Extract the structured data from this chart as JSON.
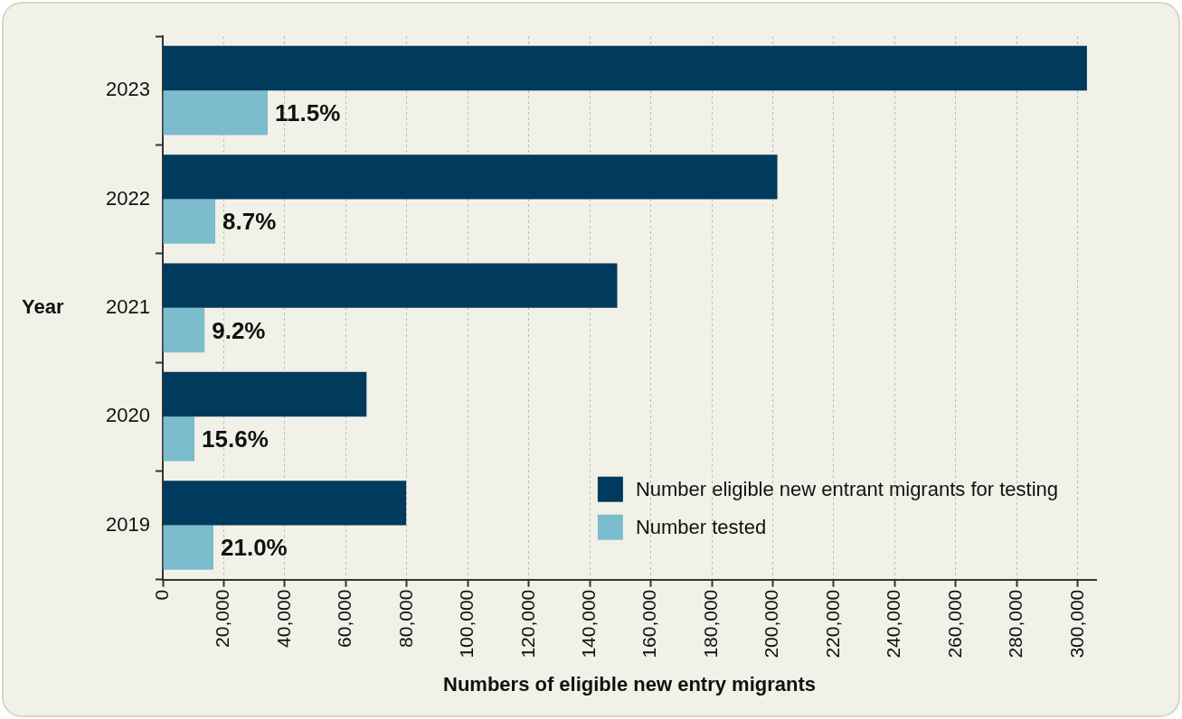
{
  "chart_data": {
    "type": "bar",
    "orientation": "horizontal",
    "xlabel": "Numbers of eligible new entry migrants",
    "ylabel": "Year",
    "categories": [
      "2023",
      "2022",
      "2021",
      "2020",
      "2019"
    ],
    "series": [
      {
        "name": "Number eligible new entrant migrants for testing",
        "color": "#003a5d",
        "values": [
          303000,
          201500,
          149000,
          66800,
          79800
        ]
      },
      {
        "name": "Number tested",
        "color": "#7bbccd",
        "values": [
          34400,
          17200,
          13700,
          10400,
          16600
        ]
      }
    ],
    "annotations": [
      {
        "text": "11.5%",
        "x": 34400,
        "y": "2023"
      },
      {
        "text": "8.7%",
        "x": 17200,
        "y": "2022"
      },
      {
        "text": "9.2%",
        "x": 13700,
        "y": "2021"
      },
      {
        "text": "15.6%",
        "x": 10400,
        "y": "2020"
      },
      {
        "text": "21.0%",
        "x": 16600,
        "y": "2019"
      }
    ],
    "xlim": [
      0,
      306000
    ],
    "xticks": [
      {
        "value": 0,
        "label": "0"
      },
      {
        "value": 20000,
        "label": "20,000"
      },
      {
        "value": 40000,
        "label": "40,000"
      },
      {
        "value": 60000,
        "label": "60,000"
      },
      {
        "value": 80000,
        "label": "80,000"
      },
      {
        "value": 100000,
        "label": "100,000"
      },
      {
        "value": 120000,
        "label": "120,000"
      },
      {
        "value": 140000,
        "label": "140,000"
      },
      {
        "value": 160000,
        "label": "160,000"
      },
      {
        "value": 180000,
        "label": "180,000"
      },
      {
        "value": 200000,
        "label": "200,000"
      },
      {
        "value": 220000,
        "label": "220,000"
      },
      {
        "value": 240000,
        "label": "240,000"
      },
      {
        "value": 260000,
        "label": "260,000"
      },
      {
        "value": 280000,
        "label": "280,000"
      },
      {
        "value": 300000,
        "label": "300,000"
      }
    ],
    "grid": "x",
    "legend": "bottom right"
  }
}
